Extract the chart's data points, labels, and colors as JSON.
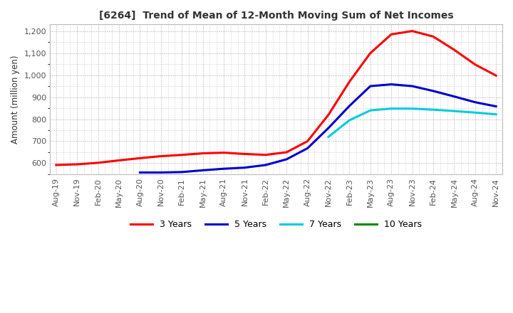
{
  "title": "[6264]  Trend of Mean of 12-Month Moving Sum of Net Incomes",
  "ylabel": "Amount (million yen)",
  "ylim": [
    550,
    1230
  ],
  "yticks": [
    600,
    700,
    800,
    900,
    1000,
    1100,
    1200
  ],
  "background_color": "#ffffff",
  "grid_color": "#aaaaaa",
  "legend_labels": [
    "3 Years",
    "5 Years",
    "7 Years",
    "10 Years"
  ],
  "legend_colors": [
    "#ff0000",
    "#0000cc",
    "#00ccdd",
    "#008800"
  ],
  "x_labels": [
    "Aug-19",
    "Nov-19",
    "Feb-20",
    "May-20",
    "Aug-20",
    "Nov-20",
    "Feb-21",
    "May-21",
    "Aug-21",
    "Nov-21",
    "Feb-22",
    "May-22",
    "Aug-22",
    "Nov-22",
    "Feb-23",
    "May-23",
    "Aug-23",
    "Nov-23",
    "Feb-24",
    "May-24",
    "Aug-24",
    "Nov-24"
  ],
  "series_3y": [
    592,
    595,
    602,
    613,
    623,
    632,
    638,
    645,
    648,
    642,
    638,
    650,
    700,
    820,
    970,
    1100,
    1185,
    1200,
    1175,
    1115,
    1048,
    998
  ],
  "series_5y": [
    null,
    null,
    null,
    null,
    558,
    558,
    560,
    568,
    575,
    580,
    592,
    618,
    668,
    760,
    860,
    950,
    958,
    950,
    928,
    903,
    877,
    858
  ],
  "series_7y": [
    null,
    null,
    null,
    null,
    null,
    null,
    null,
    null,
    null,
    null,
    null,
    null,
    null,
    720,
    795,
    840,
    848,
    848,
    843,
    837,
    830,
    822
  ],
  "series_10y": [
    null,
    null,
    null,
    null,
    null,
    null,
    null,
    null,
    null,
    null,
    null,
    null,
    null,
    null,
    null,
    null,
    null,
    null,
    null,
    null,
    null,
    null
  ]
}
